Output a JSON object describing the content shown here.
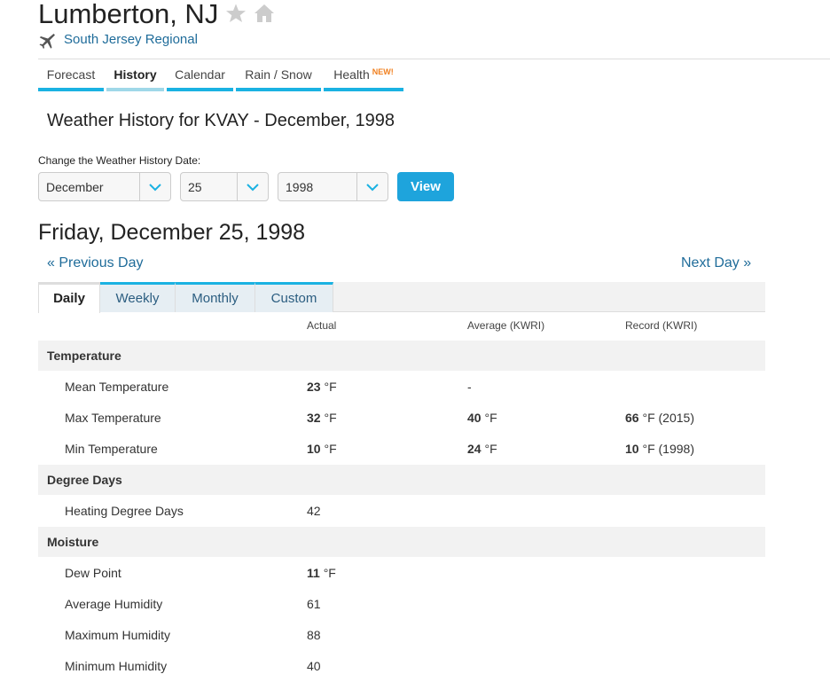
{
  "header": {
    "city": "Lumberton, NJ",
    "station": "South Jersey Regional",
    "icons": {
      "favorite": "star-icon",
      "home": "home-icon",
      "airport": "plane-icon"
    }
  },
  "nav": {
    "tabs": [
      {
        "label": "Forecast"
      },
      {
        "label": "History",
        "active": true
      },
      {
        "label": "Calendar"
      },
      {
        "label": "Rain / Snow"
      },
      {
        "label": "Health",
        "badge": "NEW!"
      }
    ]
  },
  "history": {
    "heading": "Weather History for KVAY - December, 1998",
    "change_label": "Change the Weather History Date:",
    "month": "December",
    "day": "25",
    "year": "1998",
    "view_label": "View"
  },
  "day": {
    "heading": "Friday, December 25, 1998",
    "prev": "« Previous Day",
    "next": "Next Day »"
  },
  "range_tabs": [
    "Daily",
    "Weekly",
    "Monthly",
    "Custom"
  ],
  "table": {
    "columns": [
      "Actual",
      "Average (KWRI)",
      "Record (KWRI)"
    ],
    "sections": [
      {
        "title": "Temperature",
        "rows": [
          {
            "name": "Mean Temperature",
            "actual": "23",
            "actual_unit": " °F",
            "avg": "-",
            "avg_unit": "",
            "rec": "",
            "rec_unit": ""
          },
          {
            "name": "Max Temperature",
            "actual": "32",
            "actual_unit": " °F",
            "avg": "40",
            "avg_unit": " °F",
            "rec": "66",
            "rec_unit": " °F (2015)"
          },
          {
            "name": "Min Temperature",
            "actual": "10",
            "actual_unit": " °F",
            "avg": "24",
            "avg_unit": " °F",
            "rec": "10",
            "rec_unit": " °F (1998)"
          }
        ]
      },
      {
        "title": "Degree Days",
        "rows": [
          {
            "name": "Heating Degree Days",
            "actual_plain": "42"
          }
        ]
      },
      {
        "title": "Moisture",
        "rows": [
          {
            "name": "Dew Point",
            "actual": "11",
            "actual_unit": " °F"
          },
          {
            "name": "Average Humidity",
            "actual_plain": "61"
          },
          {
            "name": "Maximum Humidity",
            "actual_plain": "88"
          },
          {
            "name": "Minimum Humidity",
            "actual_plain": "40"
          }
        ]
      }
    ]
  },
  "colors": {
    "accent": "#1ab2e2",
    "link": "#1f6c9a",
    "button": "#1ea4dc",
    "badge": "#f07f1e"
  }
}
